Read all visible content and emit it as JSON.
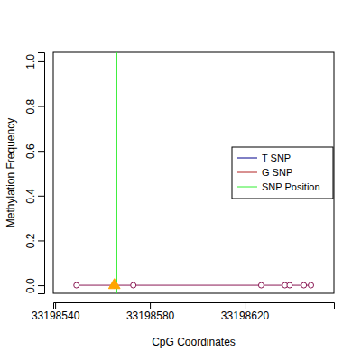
{
  "chart_data": {
    "type": "line",
    "x_label": "CpG Coordinates",
    "y_label": "Methylation Frequency",
    "xlim": [
      33198539.2,
      33198657.7
    ],
    "ylim": [
      -0.036,
      1.04
    ],
    "xticks": [
      33198540,
      33198580,
      33198620
    ],
    "yticks": [
      {
        "value": 0,
        "label": "0.0"
      },
      {
        "value": 0.2,
        "label": "0.2"
      },
      {
        "value": 0.4,
        "label": "0.4"
      },
      {
        "value": 0.6,
        "label": "0.6"
      },
      {
        "value": 0.8,
        "label": "0.8"
      },
      {
        "value": 1,
        "label": "1.0"
      }
    ],
    "series": [
      {
        "x": [
          33198549,
          33198565,
          33198573,
          33198627,
          33198637,
          33198639,
          33198645,
          33198648
        ],
        "values": [
          0,
          0,
          0,
          0,
          0,
          0,
          0,
          0
        ],
        "color": "#8b1a55",
        "marker": "circle",
        "line_style": "solid"
      },
      {
        "x": [
          33198565
        ],
        "values": [
          0
        ],
        "color": "#ffa500",
        "marker": "triangle"
      }
    ],
    "vlines": [
      {
        "x": 33198566,
        "color": "#33ee33"
      }
    ],
    "legend": "right",
    "legend_entries": [
      {
        "label": "T SNP",
        "color": "#00008b"
      },
      {
        "label": "G SNP",
        "color": "#b22222"
      },
      {
        "label": "SNP Position",
        "color": "#33ee33"
      }
    ]
  }
}
